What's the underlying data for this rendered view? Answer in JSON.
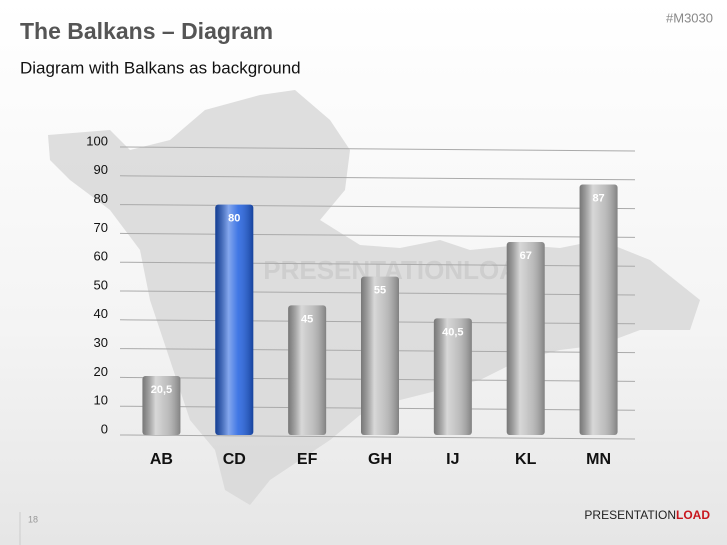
{
  "chart_data": {
    "type": "bar",
    "title": "The Balkans – Diagram",
    "subtitle": "Diagram with Balkans as background",
    "categories": [
      "AB",
      "CD",
      "EF",
      "GH",
      "IJ",
      "KL",
      "MN"
    ],
    "values": [
      20.5,
      80,
      45,
      55,
      40.5,
      67,
      87
    ],
    "value_labels": [
      "20,5",
      "80",
      "45",
      "55",
      "40,5",
      "67",
      "87"
    ],
    "colors": [
      "#b8b8b8",
      "#1f5fe0",
      "#b8b8b8",
      "#b8b8b8",
      "#b8b8b8",
      "#b8b8b8",
      "#b8b8b8"
    ],
    "ylim": [
      0,
      100
    ],
    "yticks": [
      0,
      10,
      20,
      30,
      40,
      50,
      60,
      70,
      80,
      90,
      100
    ],
    "grid": true
  },
  "slide": {
    "code": "#M3030",
    "page": "18",
    "watermark": "PRESENTATIONLOAD",
    "logo": [
      "PRESENTATION",
      "LOAD"
    ]
  }
}
